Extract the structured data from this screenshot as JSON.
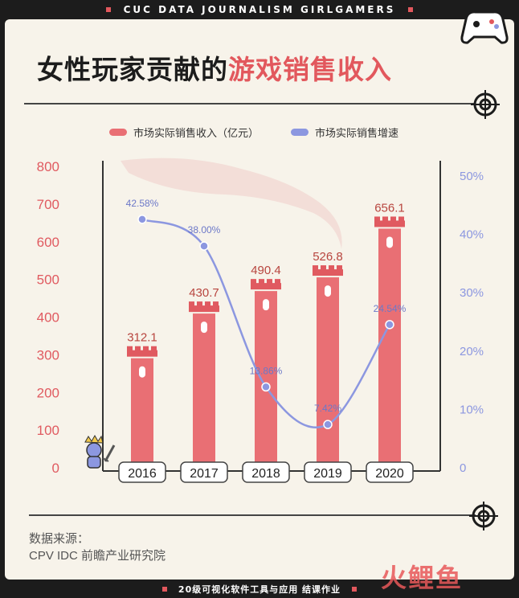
{
  "header": {
    "brand": "CUC DATA JOURNALISM GIRLGAMERS"
  },
  "title": {
    "main": "女性玩家贡献的",
    "highlight": "游戏销售收入"
  },
  "footer": {
    "source_label": "数据来源：",
    "source_name": "CPV IDC 前瞻产业研究院",
    "course": "20级可视化软件工具与应用 结课作业",
    "watermark": "火鲤鱼"
  },
  "icons": {
    "logo": "gamepad-icon",
    "crosshair": "crosshair-icon",
    "mascot": "knight-mascot-icon"
  },
  "colors": {
    "bar": "#e96f74",
    "bar_top": "#e05a60",
    "line": "#8c97e0",
    "accent": "#e2585d",
    "background": "#f7f3ea"
  },
  "chart_data": {
    "type": "bar",
    "categories": [
      "2016",
      "2017",
      "2018",
      "2019",
      "2020"
    ],
    "series": [
      {
        "name": "市场实际销售收入（亿元）",
        "type": "bar",
        "axis": "left",
        "values": [
          312.1,
          430.7,
          490.4,
          526.8,
          656.1
        ],
        "labels": [
          "312.1",
          "430.7",
          "490.4",
          "526.8",
          "656.1"
        ]
      },
      {
        "name": "市场实际销售增速",
        "type": "line",
        "axis": "right",
        "values": [
          42.58,
          38.0,
          13.86,
          7.42,
          24.54
        ],
        "labels": [
          "42.58%",
          "38.00%",
          "13.86%",
          "7.42%",
          "24.54%"
        ]
      }
    ],
    "ylim_left": [
      0,
      800
    ],
    "yticks_left": [
      "0",
      "100",
      "200",
      "300",
      "400",
      "500",
      "600",
      "700",
      "800"
    ],
    "ylim_right": [
      0,
      50
    ],
    "yticks_right": [
      "0",
      "10%",
      "20%",
      "30%",
      "40%",
      "50%"
    ],
    "legend": "top",
    "grid": false
  }
}
